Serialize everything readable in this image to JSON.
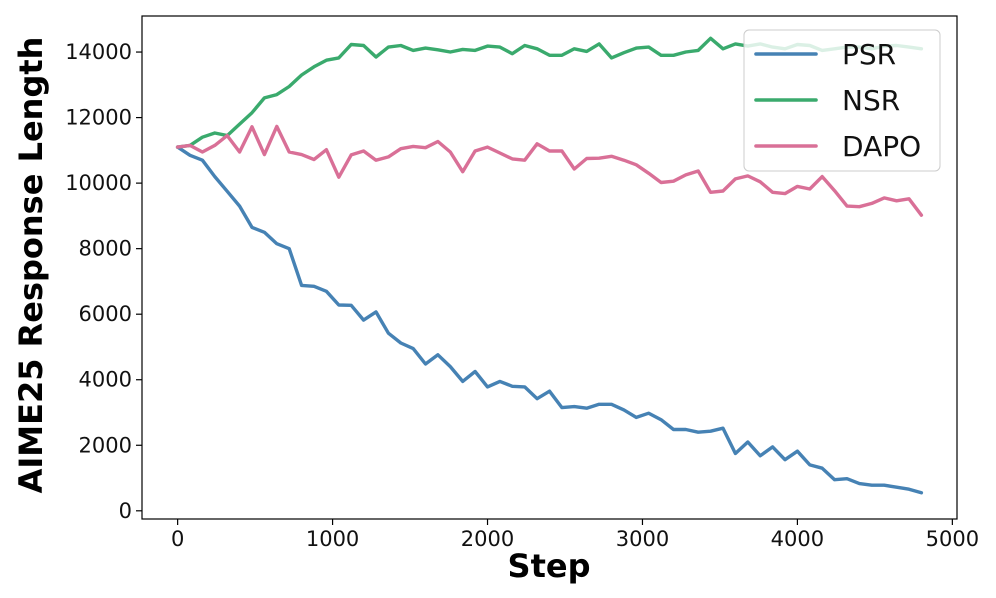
{
  "chart_data": {
    "type": "line",
    "xlabel": "Step",
    "ylabel": "AIME25 Response Length",
    "xlim": [
      -230,
      5030
    ],
    "ylim": [
      -250,
      15100
    ],
    "xticks": [
      0,
      1000,
      2000,
      3000,
      4000,
      5000
    ],
    "yticks": [
      0,
      2000,
      4000,
      6000,
      8000,
      10000,
      12000,
      14000
    ],
    "grid": false,
    "legend": "top-right",
    "x": [
      0,
      80,
      160,
      240,
      320,
      400,
      480,
      560,
      640,
      720,
      800,
      880,
      960,
      1040,
      1120,
      1200,
      1280,
      1360,
      1440,
      1520,
      1600,
      1680,
      1760,
      1840,
      1920,
      2000,
      2080,
      2160,
      2240,
      2320,
      2400,
      2480,
      2560,
      2640,
      2720,
      2800,
      2880,
      2960,
      3040,
      3120,
      3200,
      3280,
      3360,
      3440,
      3520,
      3600,
      3680,
      3760,
      3840,
      3920,
      4000,
      4080,
      4160,
      4240,
      4320,
      4400,
      4480,
      4560,
      4640,
      4720,
      4800
    ],
    "series": [
      {
        "name": "PSR",
        "color": "#4682b4",
        "values": [
          11100,
          10850,
          10700,
          10200,
          9750,
          9300,
          8650,
          8500,
          8150,
          8000,
          6880,
          6850,
          6700,
          6280,
          6270,
          5820,
          6070,
          5420,
          5120,
          4950,
          4480,
          4760,
          4400,
          3950,
          4250,
          3780,
          3950,
          3800,
          3780,
          3420,
          3650,
          3150,
          3180,
          3130,
          3250,
          3250,
          3080,
          2850,
          2980,
          2780,
          2480,
          2480,
          2400,
          2430,
          2520,
          1750,
          2100,
          1680,
          1950,
          1560,
          1820,
          1400,
          1300,
          950,
          980,
          830,
          780,
          780,
          720,
          660,
          550
        ]
      },
      {
        "name": "NSR",
        "color": "#3aaa6d",
        "values": [
          11100,
          11150,
          11400,
          11530,
          11450,
          11800,
          12150,
          12600,
          12700,
          12950,
          13300,
          13550,
          13750,
          13820,
          14230,
          14200,
          13850,
          14150,
          14200,
          14050,
          14120,
          14070,
          14000,
          14080,
          14050,
          14180,
          14150,
          13950,
          14200,
          14100,
          13900,
          13900,
          14100,
          14020,
          14250,
          13820,
          13980,
          14120,
          14150,
          13900,
          13900,
          14000,
          14050,
          14420,
          14100,
          14250,
          14180,
          14250,
          14150,
          14100,
          14230,
          14200,
          14050,
          14100,
          14150,
          14150,
          14100,
          14180,
          14200,
          14150,
          14100
        ]
      },
      {
        "name": "DAPO",
        "color": "#d97097",
        "values": [
          11100,
          11150,
          10950,
          11150,
          11450,
          10950,
          11720,
          10870,
          11730,
          10950,
          10870,
          10720,
          11020,
          10180,
          10860,
          10980,
          10700,
          10800,
          11050,
          11120,
          11080,
          11270,
          10950,
          10350,
          10980,
          11100,
          10920,
          10740,
          10700,
          11200,
          10980,
          10980,
          10430,
          10750,
          10760,
          10820,
          10700,
          10560,
          10300,
          10020,
          10060,
          10250,
          10370,
          9720,
          9760,
          10130,
          10220,
          10040,
          9720,
          9680,
          9900,
          9820,
          10200,
          9770,
          9300,
          9280,
          9380,
          9550,
          9460,
          9520,
          9020
        ]
      }
    ]
  }
}
